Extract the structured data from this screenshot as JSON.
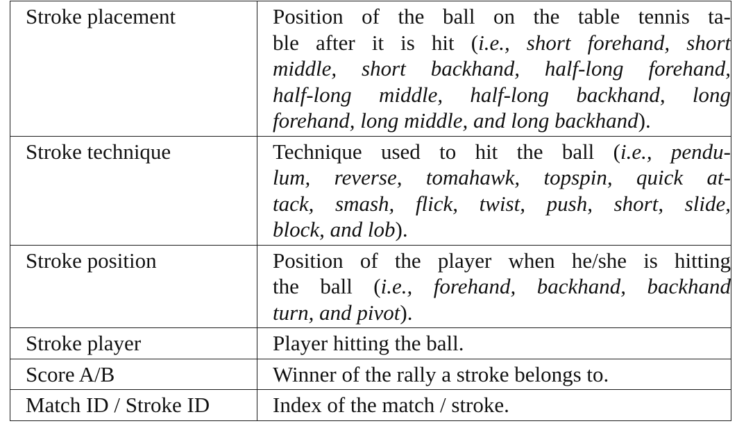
{
  "table": {
    "rows": [
      {
        "name": "Stroke placement",
        "lines": [
          [
            {
              "t": "Position of the ball on the table tennis ta-"
            }
          ],
          [
            {
              "t": "ble after it is hit ("
            },
            {
              "t": "i.e., short forehand, short",
              "i": true
            }
          ],
          [
            {
              "t": "middle, short backhand, half-long forehand,",
              "i": true
            }
          ],
          [
            {
              "t": "half-long middle, half-long backhand, long",
              "i": true
            }
          ],
          [
            {
              "t": "forehand, long middle, and long backhand",
              "i": true
            },
            {
              "t": ")."
            }
          ]
        ]
      },
      {
        "name": "Stroke technique",
        "lines": [
          [
            {
              "t": "Technique used to hit the ball ("
            },
            {
              "t": "i.e., pendu-",
              "i": true
            }
          ],
          [
            {
              "t": "lum, reverse, tomahawk, topspin, quick at-",
              "i": true
            }
          ],
          [
            {
              "t": "tack, smash, flick, twist, push, short, slide,",
              "i": true
            }
          ],
          [
            {
              "t": "block, and lob",
              "i": true
            },
            {
              "t": ")."
            }
          ]
        ]
      },
      {
        "name": "Stroke position",
        "lines": [
          [
            {
              "t": "Position of the player when he/she is hitting"
            }
          ],
          [
            {
              "t": "the ball ("
            },
            {
              "t": "i.e., forehand, backhand, backhand",
              "i": true
            }
          ],
          [
            {
              "t": "turn, and pivot",
              "i": true
            },
            {
              "t": ")."
            }
          ]
        ]
      },
      {
        "name": "Stroke player",
        "lines": [
          [
            {
              "t": "Player hitting the ball."
            }
          ]
        ]
      },
      {
        "name": "Score A/B",
        "lines": [
          [
            {
              "t": "Winner of the rally a stroke belongs to."
            }
          ]
        ]
      },
      {
        "name": "Match ID / Stroke ID",
        "lines": [
          [
            {
              "t": "Index of the match / stroke."
            }
          ]
        ]
      }
    ]
  }
}
